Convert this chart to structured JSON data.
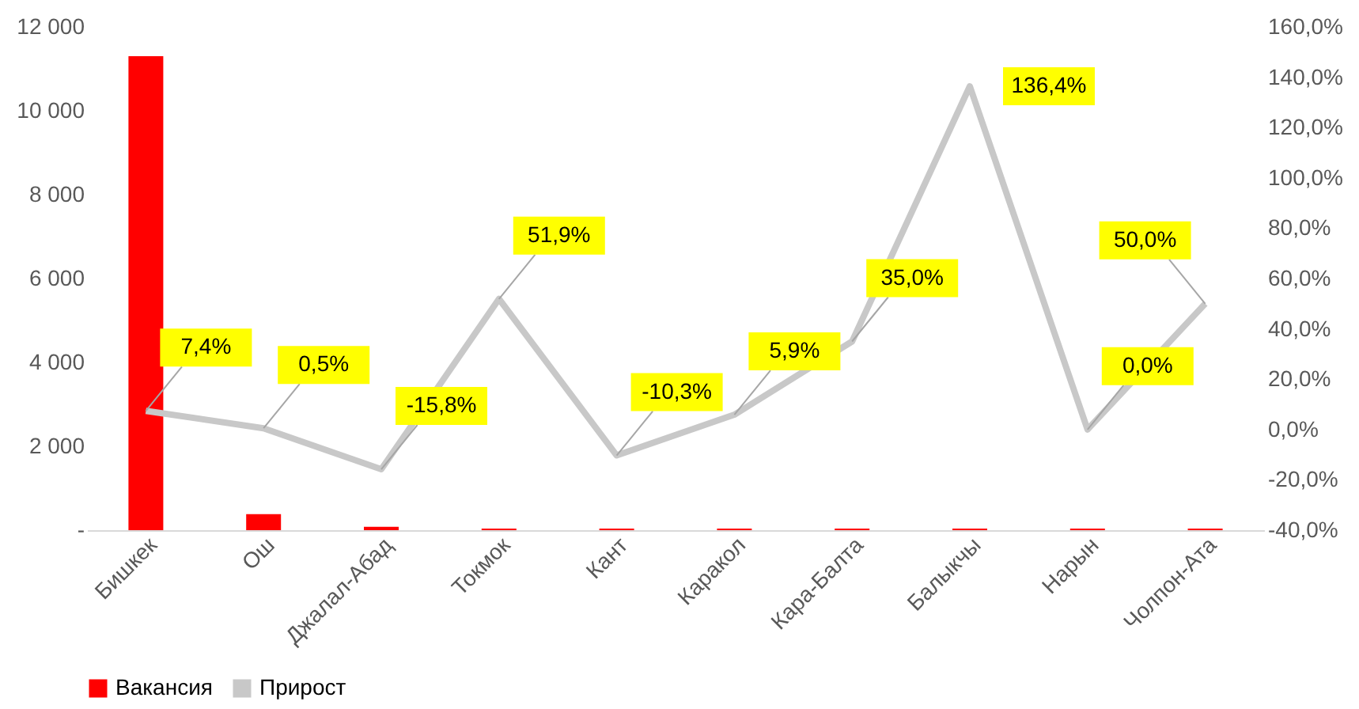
{
  "chart_data": {
    "type": "bar",
    "categories": [
      "Бишкек",
      "Ош",
      "Джалал-Абад",
      "Токмок",
      "Кант",
      "Каракол",
      "Кара-Балта",
      "Балыкчы",
      "Нарын",
      "Чолпон-Ата"
    ],
    "series": [
      {
        "name": "Вакансия",
        "color": "#ff0000",
        "values": [
          11300,
          380,
          80,
          40,
          40,
          40,
          40,
          40,
          40,
          40
        ]
      },
      {
        "name": "Прирост",
        "type": "line",
        "axis": "y2",
        "color": "#c8c8c8",
        "values": [
          7.4,
          0.5,
          -15.8,
          51.9,
          -10.3,
          5.9,
          35.0,
          136.4,
          0.0,
          50.0
        ],
        "value_labels": [
          "7,4%",
          "0,5%",
          "-15,8%",
          "51,9%",
          "-10,3%",
          "5,9%",
          "35,0%",
          "136,4%",
          "0,0%",
          "50,0%"
        ]
      }
    ],
    "ylim": [
      0,
      12000
    ],
    "yticks": [
      {
        "value": 0,
        "label": "-"
      },
      {
        "value": 2000,
        "label": "2 000"
      },
      {
        "value": 4000,
        "label": "4 000"
      },
      {
        "value": 6000,
        "label": "6 000"
      },
      {
        "value": 8000,
        "label": "8 000"
      },
      {
        "value": 10000,
        "label": "10 000"
      },
      {
        "value": 12000,
        "label": "12 000"
      }
    ],
    "y2lim": [
      -40,
      160
    ],
    "y2ticks": [
      {
        "value": -40,
        "label": "-40,0%"
      },
      {
        "value": -20,
        "label": "-20,0%"
      },
      {
        "value": 0,
        "label": "0,0%"
      },
      {
        "value": 20,
        "label": "20,0%"
      },
      {
        "value": 40,
        "label": "40,0%"
      },
      {
        "value": 60,
        "label": "60,0%"
      },
      {
        "value": 80,
        "label": "80,0%"
      },
      {
        "value": 100,
        "label": "100,0%"
      },
      {
        "value": 120,
        "label": "120,0%"
      },
      {
        "value": 140,
        "label": "140,0%"
      },
      {
        "value": 160,
        "label": "160,0%"
      }
    ],
    "grid": false,
    "legend": "bottom"
  }
}
